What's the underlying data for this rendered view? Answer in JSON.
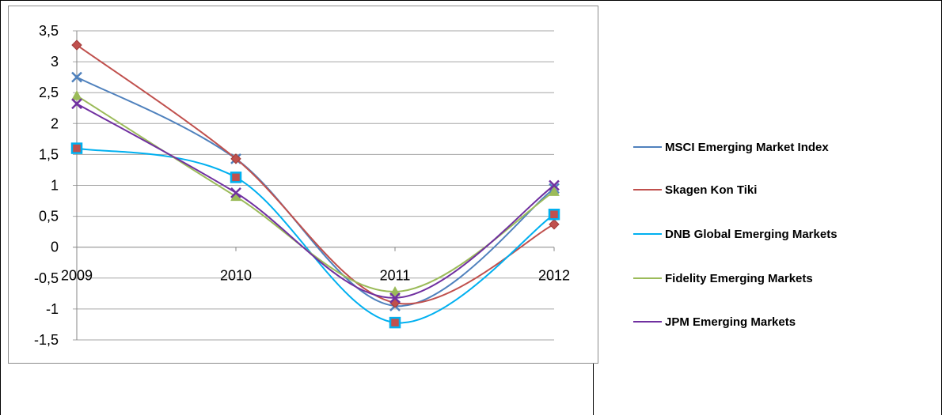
{
  "chart_data": {
    "type": "line",
    "title": "",
    "xlabel": "",
    "ylabel": "",
    "categories": [
      "2009",
      "2010",
      "2011",
      "2012"
    ],
    "ylim": [
      -1.5,
      3.5
    ],
    "ytick_labels": [
      "3,5",
      "3",
      "2,5",
      "2",
      "1,5",
      "1",
      "0,5",
      "0",
      "-0,5",
      "-1",
      "-1,5"
    ],
    "grid": true,
    "legend_position": "right",
    "series": [
      {
        "name": "MSCI Emerging Market Index",
        "values": [
          2.75,
          1.43,
          -0.95,
          0.95
        ],
        "color": "#4f81bd",
        "marker": "x"
      },
      {
        "name": "Skagen Kon Tiki",
        "values": [
          3.27,
          1.43,
          -0.9,
          0.37
        ],
        "color": "#c0504d",
        "marker": "diamond"
      },
      {
        "name": "DNB Global Emerging Markets",
        "values": [
          1.6,
          1.13,
          -1.22,
          0.53
        ],
        "color": "#00b0f0",
        "marker": "square"
      },
      {
        "name": "Fidelity Emerging Markets",
        "values": [
          2.45,
          0.82,
          -0.72,
          0.9
        ],
        "color": "#9bbb59",
        "marker": "triangle"
      },
      {
        "name": "JPM Emerging Markets",
        "values": [
          2.32,
          0.88,
          -0.82,
          1.0
        ],
        "color": "#7030a0",
        "marker": "x"
      }
    ]
  }
}
